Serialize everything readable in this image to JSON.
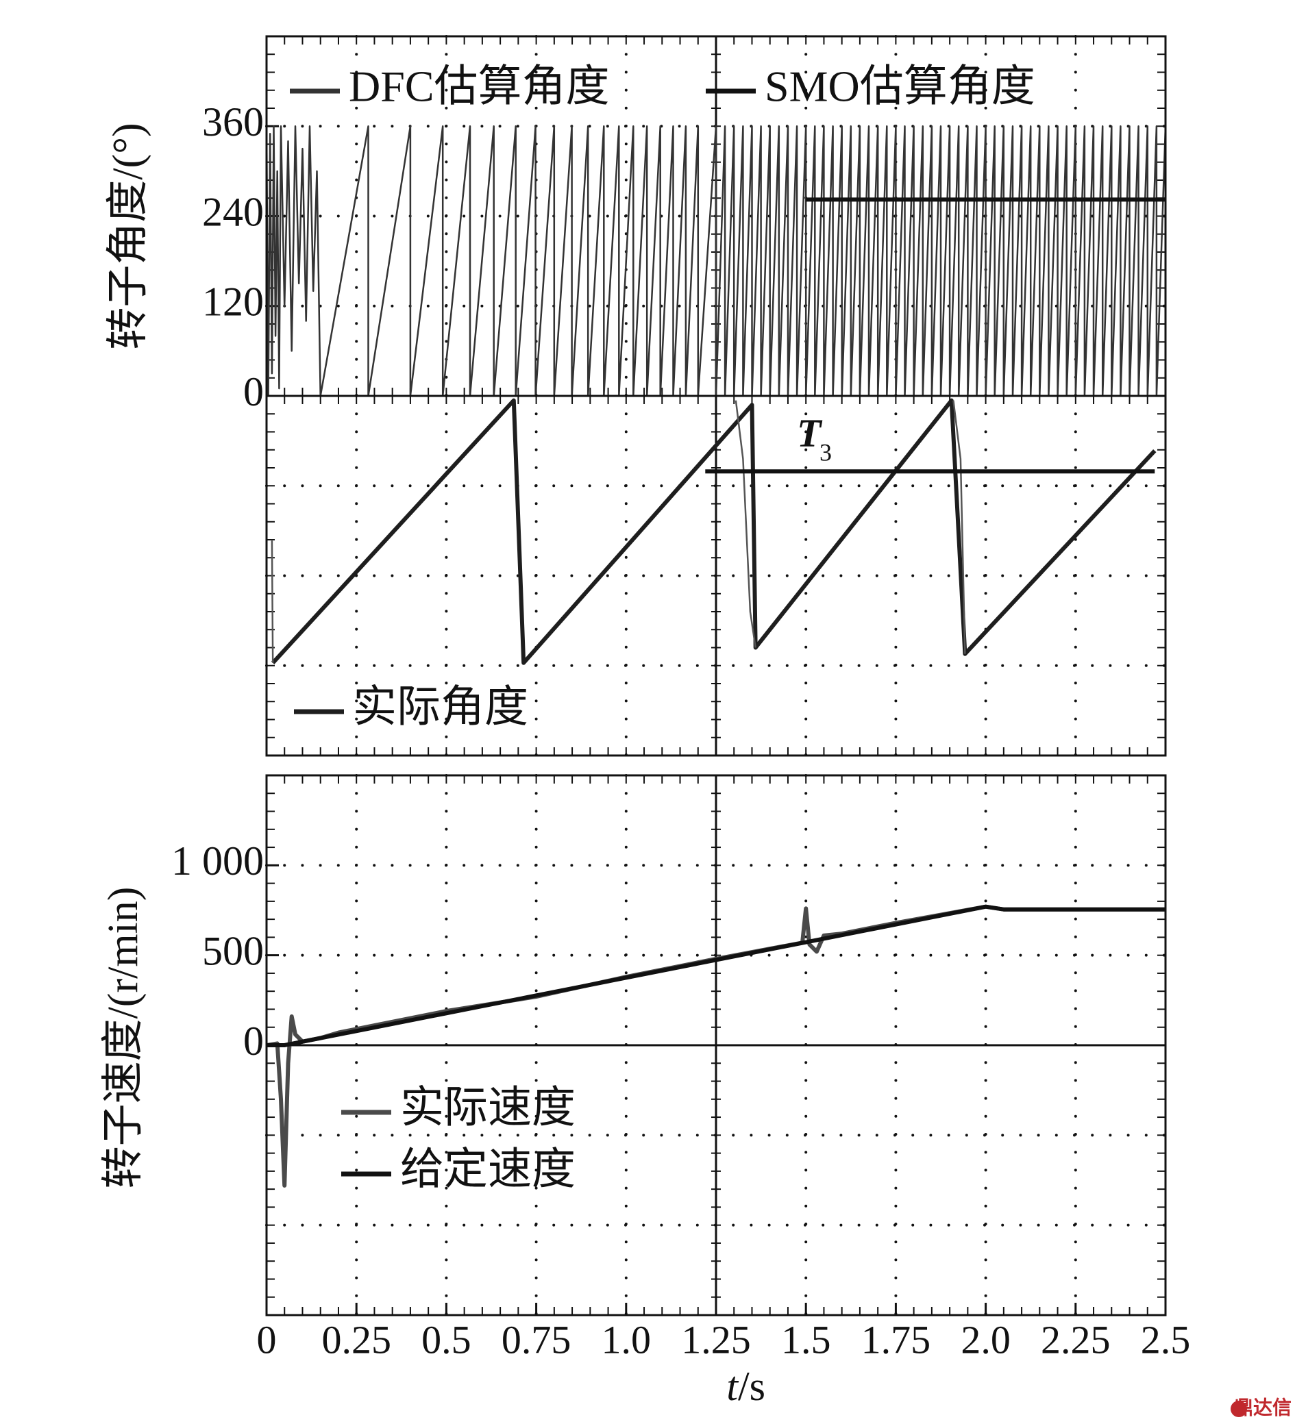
{
  "chart_data": [
    {
      "type": "line",
      "ylabel": "转子角度/(°)",
      "xlim": [
        0,
        2.5
      ],
      "ylim": [
        0,
        480
      ],
      "yticks": [
        0,
        120,
        240,
        360
      ],
      "series": [
        {
          "name": "DFC估算角度",
          "color": "#333333",
          "x": [
            0,
            0.005,
            0.01,
            0.015,
            0.02,
            0.025,
            0.03,
            0.035,
            0.04,
            0.05,
            0.06,
            0.07,
            0.08,
            0.09,
            0.1,
            0.11,
            0.12,
            0.13,
            0.14,
            0.15,
            0.283,
            0.283,
            0.4,
            0.4,
            0.49,
            0.49,
            0.566,
            0.566,
            0.632,
            0.632,
            0.693,
            0.693,
            0.748,
            0.748,
            0.8,
            0.8,
            0.849,
            0.849,
            0.894,
            0.894,
            0.938,
            0.938,
            0.98,
            0.98,
            1.02,
            1.02,
            1.058,
            1.058,
            1.095,
            1.095,
            1.131,
            1.131,
            1.166,
            1.166,
            1.2,
            1.2,
            1.25,
            1.25,
            1.275,
            1.275,
            1.3,
            1.3,
            1.325,
            1.325,
            1.35,
            1.35,
            1.375,
            1.375,
            1.4,
            1.4,
            1.425,
            1.425,
            1.45,
            1.45,
            1.475,
            1.475,
            1.5,
            1.5,
            1.525,
            1.525,
            1.55,
            1.55,
            1.575,
            1.575,
            1.6,
            1.6,
            1.625,
            1.625,
            1.65,
            1.65,
            1.675,
            1.675,
            1.7,
            1.7,
            1.725,
            1.725,
            1.75,
            1.75,
            1.775,
            1.775,
            1.8,
            1.8,
            1.825,
            1.825,
            1.85,
            1.85,
            1.875,
            1.875,
            1.9,
            1.9,
            1.925,
            1.925,
            1.95,
            1.95,
            1.975,
            1.975,
            2,
            2,
            2.025,
            2.025,
            2.05,
            2.05,
            2.075,
            2.075,
            2.1,
            2.1,
            2.125,
            2.125,
            2.15,
            2.15,
            2.175,
            2.175,
            2.2,
            2.2,
            2.225,
            2.225,
            2.25,
            2.25,
            2.275,
            2.275,
            2.3,
            2.3,
            2.325,
            2.325,
            2.35,
            2.35,
            2.375,
            2.375,
            2.4,
            2.4,
            2.425,
            2.425,
            2.45,
            2.45,
            2.475,
            2.475,
            2.5
          ],
          "values": [
            360,
            0,
            350,
            30,
            360,
            80,
            300,
            10,
            360,
            120,
            340,
            60,
            360,
            150,
            330,
            100,
            360,
            140,
            300,
            0,
            360,
            0,
            360,
            0,
            360,
            0,
            360,
            0,
            360,
            0,
            360,
            0,
            360,
            0,
            360,
            0,
            360,
            0,
            360,
            0,
            360,
            0,
            360,
            0,
            360,
            0,
            360,
            0,
            360,
            0,
            360,
            0,
            360,
            0,
            360,
            0,
            360,
            0,
            360,
            0,
            360,
            0,
            360,
            0,
            360,
            0,
            360,
            0,
            360,
            0,
            360,
            0,
            360,
            0,
            360,
            0,
            360,
            0,
            360,
            0,
            360,
            0,
            360,
            0,
            360,
            0,
            360,
            0,
            360,
            0,
            360,
            0,
            360,
            0,
            360,
            0,
            360,
            0,
            360,
            0,
            360,
            0,
            360,
            0,
            360,
            0,
            360,
            0,
            360,
            0,
            360,
            0,
            360,
            0,
            360,
            0,
            360,
            0,
            360,
            0,
            360,
            0,
            360,
            0,
            360,
            0,
            360,
            0,
            360,
            0,
            360,
            0,
            360,
            0,
            360,
            0,
            360,
            0,
            360,
            0,
            360,
            0,
            360,
            0,
            360,
            0,
            360,
            0,
            360,
            0,
            360,
            0,
            360,
            0,
            360,
            0,
            360
          ]
        },
        {
          "name": "SMO估算角度",
          "color": "#111111",
          "x": [
            1.5,
            2.5
          ],
          "values": [
            262,
            262
          ]
        }
      ]
    },
    {
      "type": "line",
      "xlim": [
        0,
        10
      ],
      "ylim": [
        0,
        4
      ],
      "annotation": {
        "text": "T",
        "subscript": "3"
      },
      "series": [
        {
          "name": "实际角度",
          "color": "#1e1e1e",
          "x": [
            0.07,
            2.75,
            2.86,
            5.4,
            5.44,
            7.62,
            7.77,
            9.88
          ],
          "values": [
            1.03,
            3.95,
            1.03,
            3.9,
            1.2,
            3.95,
            1.13,
            3.39
          ]
        },
        {
          "color": "#555555",
          "x": [
            0.06,
            0.07,
            5.2,
            5.22,
            5.3,
            5.38,
            5.44,
            7.6,
            7.64,
            7.72,
            7.77
          ],
          "values": [
            2.4,
            1.03,
            null,
            3.95,
            3.3,
            1.6,
            1.2,
            null,
            3.95,
            3.3,
            1.13
          ]
        },
        {
          "color": "#111111",
          "x": [
            4.88,
            9.88
          ],
          "values": [
            3.16,
            3.16
          ]
        }
      ]
    },
    {
      "type": "line",
      "ylabel": "转子速度/(r/min)",
      "xlabel_symbol": "t",
      "xlabel_unit": "/s",
      "xlim": [
        0,
        2.5
      ],
      "ylim": [
        -1500,
        1500
      ],
      "xticks": [
        0,
        0.25,
        0.5,
        0.75,
        {
          "value": 1,
          "label": "1.0"
        },
        1.25,
        1.5,
        1.75,
        {
          "value": 2,
          "label": "2.0"
        },
        2.25,
        2.5
      ],
      "yticks": [
        0,
        500,
        {
          "value": 1000,
          "label": "1 000"
        }
      ],
      "series": [
        {
          "name": "实际速度",
          "color": "#4a4a4a",
          "x": [
            0,
            0.03,
            0.04,
            0.05,
            0.06,
            0.07,
            0.08,
            0.1,
            0.15,
            0.2,
            0.3,
            0.5,
            0.75,
            1,
            1.25,
            1.49,
            1.5,
            1.51,
            1.53,
            1.55,
            1.6,
            1.75,
            2,
            2.05,
            2.5
          ],
          "values": [
            0,
            10,
            -300,
            -780,
            -100,
            160,
            60,
            20,
            40,
            70,
            110,
            190,
            270,
            380,
            480,
            570,
            760,
            560,
            520,
            610,
            620,
            680,
            770,
            755,
            755
          ]
        },
        {
          "name": "给定速度",
          "color": "#111111",
          "x": [
            0,
            0.05,
            2,
            2.05,
            2.5
          ],
          "values": [
            0,
            0,
            770,
            755,
            755
          ]
        }
      ]
    }
  ],
  "watermark": "鼎达信"
}
